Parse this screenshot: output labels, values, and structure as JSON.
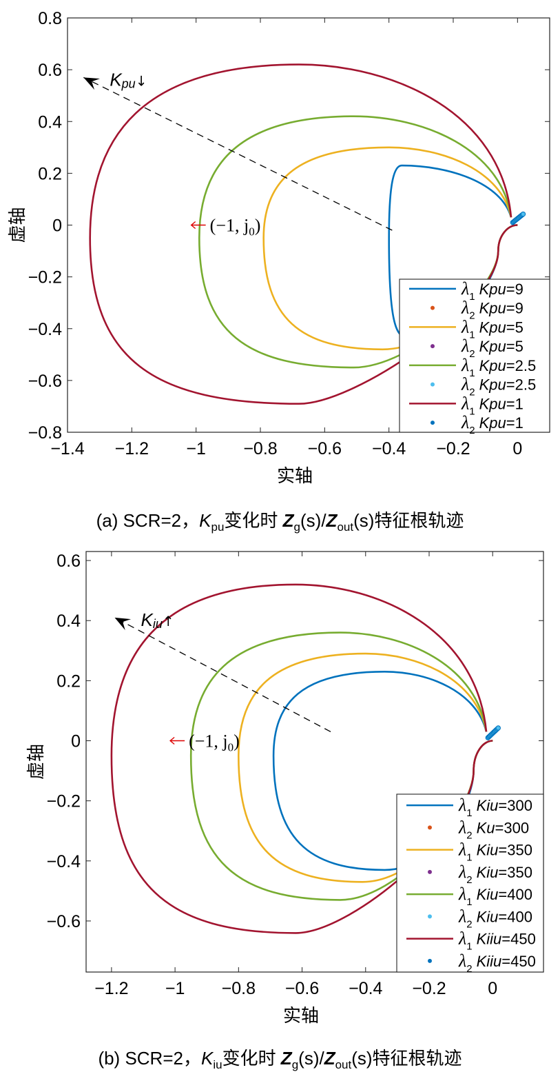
{
  "chart_data": [
    {
      "type": "line",
      "caption": {
        "prefix": "(a) SCR=2，",
        "param": "K",
        "param_sub": "pu",
        "middle": "变化时 ",
        "z1": "Z",
        "z1_sub": "g",
        "s1": "(s)/",
        "z2": "Z",
        "z2_sub": "out",
        "s2": "(s)特征根轨迹"
      },
      "xlabel": "实轴",
      "ylabel": "虚轴",
      "xlim": [
        -1.4,
        0.1
      ],
      "ylim": [
        -0.8,
        0.8
      ],
      "xticks": [
        -1.4,
        -1.2,
        -1,
        -0.8,
        -0.6,
        -0.4,
        -0.2,
        0
      ],
      "xtick_labels": [
        "−1.4",
        "−1.2",
        "−1",
        "−0.8",
        "−0.6",
        "−0.4",
        "−0.2",
        "0"
      ],
      "yticks": [
        -0.8,
        -0.6,
        -0.4,
        -0.2,
        0,
        0.2,
        0.4,
        0.6,
        0.8
      ],
      "ytick_labels": [
        "−0.8",
        "−0.6",
        "−0.4",
        "−0.2",
        "0",
        "0.2",
        "0.4",
        "0.6",
        "0.8"
      ],
      "annotation_arrow": {
        "from": [
          -0.39,
          -0.02
        ],
        "to": [
          -1.35,
          0.57
        ],
        "label": "K",
        "label_sub": "pu",
        "label_suffix": "↓"
      },
      "critical_point": {
        "x": -1,
        "y": 0,
        "label": "(−1, j",
        "label_sub": "0",
        "label_end": ")"
      },
      "legend_position": "bottom-right",
      "legend": [
        {
          "marker": "line",
          "lambda": "λ",
          "lambda_sub": "1",
          "param": "Kpu",
          "value": "=9",
          "color": "#0072BD"
        },
        {
          "marker": "dot",
          "lambda": "λ",
          "lambda_sub": "2",
          "param": "Kpu",
          "value": "=9",
          "color": "#D95319"
        },
        {
          "marker": "line",
          "lambda": "λ",
          "lambda_sub": "1",
          "param": "Kpu",
          "value": "=5",
          "color": "#EDB120"
        },
        {
          "marker": "dot",
          "lambda": "λ",
          "lambda_sub": "2",
          "param": "Kpu",
          "value": "=5",
          "color": "#7E2F8E"
        },
        {
          "marker": "line",
          "lambda": "λ",
          "lambda_sub": "1",
          "param": "Kpu",
          "value": "=2.5",
          "color": "#77AC30"
        },
        {
          "marker": "dot",
          "lambda": "λ",
          "lambda_sub": "2",
          "param": "Kpu",
          "value": "=2.5",
          "color": "#4DBEEE"
        },
        {
          "marker": "line",
          "lambda": "λ",
          "lambda_sub": "1",
          "param": "Kpu",
          "value": "=1",
          "color": "#A2142F"
        },
        {
          "marker": "dot",
          "lambda": "λ",
          "lambda_sub": "2",
          "param": "Kpu",
          "value": "=1",
          "color": "#0072BD"
        }
      ],
      "series": [
        {
          "label": "λ1 Kpu=9",
          "color": "#0072BD",
          "left_x": -0.4,
          "top_y": 0.23,
          "peak_x": -0.36,
          "bottom_y": -0.43,
          "bottom_x": -0.35
        },
        {
          "label": "λ1 Kpu=5",
          "color": "#EDB120",
          "left_x": -0.79,
          "top_y": 0.3,
          "peak_x": -0.4,
          "bottom_y": -0.48,
          "bottom_x": -0.42
        },
        {
          "label": "λ1 Kpu=2.5",
          "color": "#77AC30",
          "left_x": -0.99,
          "top_y": 0.42,
          "peak_x": -0.51,
          "bottom_y": -0.55,
          "bottom_x": -0.51
        },
        {
          "label": "λ1 Kpu=1",
          "color": "#A2142F",
          "left_x": -1.33,
          "top_y": 0.62,
          "peak_x": -0.68,
          "bottom_y": -0.69,
          "bottom_x": -0.68
        }
      ]
    },
    {
      "type": "line",
      "caption": {
        "prefix": "(b) SCR=2，",
        "param": "K",
        "param_sub": "iu",
        "middle": "变化时 ",
        "z1": "Z",
        "z1_sub": "g",
        "s1": "(s)/",
        "z2": "Z",
        "z2_sub": "out",
        "s2": "(s)特征根轨迹"
      },
      "xlabel": "实轴",
      "ylabel": "虚轴",
      "xlim": [
        -1.28,
        0.16
      ],
      "ylim": [
        -0.77,
        0.63
      ],
      "xticks": [
        -1.2,
        -1,
        -0.8,
        -0.6,
        -0.4,
        -0.2,
        0
      ],
      "xtick_labels": [
        "−1.2",
        "−1",
        "−0.8",
        "−0.6",
        "−0.4",
        "−0.2",
        "0"
      ],
      "yticks": [
        -0.6,
        -0.4,
        -0.2,
        0,
        0.2,
        0.4,
        0.6
      ],
      "ytick_labels": [
        "−0.6",
        "−0.4",
        "−0.2",
        "0",
        "0.2",
        "0.4",
        "0.6"
      ],
      "annotation_arrow": {
        "from": [
          -0.51,
          0.03
        ],
        "to": [
          -1.19,
          0.41
        ],
        "label": "K",
        "label_sub": "iu",
        "label_suffix": "↑"
      },
      "critical_point": {
        "x": -1,
        "y": 0,
        "label": "(−1, j",
        "label_sub": "0",
        "label_end": ")"
      },
      "legend_position": "bottom-right",
      "legend": [
        {
          "marker": "line",
          "lambda": "λ",
          "lambda_sub": "1",
          "param": "Kiu",
          "value": "=300",
          "color": "#0072BD"
        },
        {
          "marker": "dot",
          "lambda": "λ",
          "lambda_sub": "2",
          "param": "Ku",
          "value": "=300",
          "color": "#D95319"
        },
        {
          "marker": "line",
          "lambda": "λ",
          "lambda_sub": "1",
          "param": "Kiu",
          "value": "=350",
          "color": "#EDB120"
        },
        {
          "marker": "dot",
          "lambda": "λ",
          "lambda_sub": "2",
          "param": "Kiu",
          "value": "=350",
          "color": "#7E2F8E"
        },
        {
          "marker": "line",
          "lambda": "λ",
          "lambda_sub": "1",
          "param": "Kiu",
          "value": "=400",
          "color": "#77AC30"
        },
        {
          "marker": "dot",
          "lambda": "λ",
          "lambda_sub": "2",
          "param": "Kiu",
          "value": "=400",
          "color": "#4DBEEE"
        },
        {
          "marker": "line",
          "lambda": "λ",
          "lambda_sub": "1",
          "param": "Kiiu",
          "value": "=450",
          "color": "#A2142F"
        },
        {
          "marker": "dot",
          "lambda": "λ",
          "lambda_sub": "2",
          "param": "Kiiu",
          "value": "=450",
          "color": "#0072BD"
        }
      ],
      "series": [
        {
          "label": "λ1 Kiu=300",
          "color": "#0072BD",
          "left_x": -0.69,
          "top_y": 0.23,
          "peak_x": -0.34,
          "bottom_y": -0.43,
          "bottom_x": -0.34
        },
        {
          "label": "λ1 Kiu=350",
          "color": "#EDB120",
          "left_x": -0.8,
          "top_y": 0.29,
          "peak_x": -0.4,
          "bottom_y": -0.47,
          "bottom_x": -0.41
        },
        {
          "label": "λ1 Kiu=400",
          "color": "#77AC30",
          "left_x": -0.95,
          "top_y": 0.36,
          "peak_x": -0.48,
          "bottom_y": -0.53,
          "bottom_x": -0.48
        },
        {
          "label": "λ1 Kiiu=450",
          "color": "#A2142F",
          "left_x": -1.2,
          "top_y": 0.52,
          "peak_x": -0.62,
          "bottom_y": -0.64,
          "bottom_x": -0.62
        }
      ]
    }
  ]
}
